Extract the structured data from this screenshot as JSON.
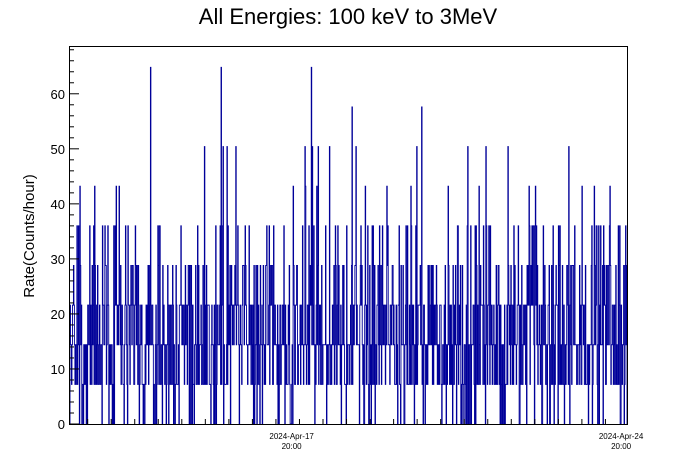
{
  "chart_data": {
    "type": "bar",
    "title": "All Energies:  100 keV to 3MeV",
    "xlabel": "",
    "ylabel": "Rate(Counts/hour)",
    "ylim": [
      0,
      68.5
    ],
    "yticks": [
      0,
      10,
      20,
      30,
      40,
      50,
      60
    ],
    "xlim": [
      "2024-Apr-13 03:00",
      "2024-Apr-24 23:00"
    ],
    "xticks": [
      {
        "date": "2024-Apr-17",
        "time": "20:00"
      },
      {
        "date": "2024-Apr-24",
        "time": "20:00"
      }
    ],
    "bin_width_hours": 0.25,
    "count_quantum": 7.2,
    "series": [
      {
        "color": "#000099",
        "summary": {
          "min": 0,
          "max": 64.8,
          "typical_range": [
            7.2,
            36
          ],
          "mean_approx": 18
        }
      }
    ],
    "grid": false,
    "legend": "none"
  },
  "colors": {
    "histogram": "#000099",
    "frame": "#000000",
    "background": "#ffffff"
  }
}
